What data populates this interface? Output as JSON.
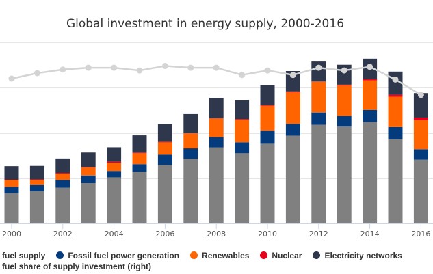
{
  "chart_data": {
    "type": "bar",
    "stacked": true,
    "title": "Global investment in energy supply, 2000-2016",
    "x": [
      2000,
      2001,
      2002,
      2003,
      2004,
      2005,
      2006,
      2007,
      2008,
      2009,
      2010,
      2011,
      2012,
      2013,
      2014,
      2015,
      2016
    ],
    "x_tick_labels": [
      "2000",
      "2002",
      "2004",
      "2006",
      "2008",
      "2010",
      "2012",
      "2014",
      "2016"
    ],
    "ylim": [
      0,
      2000
    ],
    "ylim_right": [
      0,
      100
    ],
    "grid": true,
    "legend_placement": "bottom",
    "series": [
      {
        "name": "fuel supply",
        "color": "#808080",
        "values": [
          335,
          355,
          395,
          445,
          510,
          570,
          645,
          715,
          840,
          775,
          880,
          970,
          1090,
          1070,
          1120,
          930,
          705
        ]
      },
      {
        "name": "Fossil fuel power generation",
        "color": "#043b7c",
        "values": [
          70,
          70,
          85,
          85,
          70,
          85,
          115,
          115,
          115,
          120,
          145,
          130,
          135,
          115,
          135,
          135,
          115
        ]
      },
      {
        "name": "Renewables",
        "color": "#ff6400",
        "values": [
          75,
          55,
          70,
          90,
          90,
          120,
          135,
          165,
          205,
          250,
          275,
          350,
          340,
          340,
          325,
          335,
          320
        ]
      },
      {
        "name": "Nuclear",
        "color": "#e8001c",
        "values": [
          3,
          6,
          8,
          3,
          12,
          8,
          8,
          3,
          3,
          8,
          8,
          8,
          3,
          8,
          15,
          22,
          30
        ]
      },
      {
        "name": "Electricity networks",
        "color": "#2e374b",
        "values": [
          150,
          150,
          160,
          160,
          160,
          190,
          195,
          210,
          225,
          210,
          220,
          225,
          220,
          220,
          225,
          255,
          270
        ]
      }
    ],
    "line_series": {
      "name": "fuel share of supply investment (right)",
      "color": "#d4d4d4",
      "axis": "right",
      "values": [
        80,
        83,
        85,
        86,
        86,
        84.5,
        87,
        86,
        86,
        82,
        84.5,
        82,
        86,
        84.5,
        86.5,
        79.5,
        71
      ]
    }
  }
}
